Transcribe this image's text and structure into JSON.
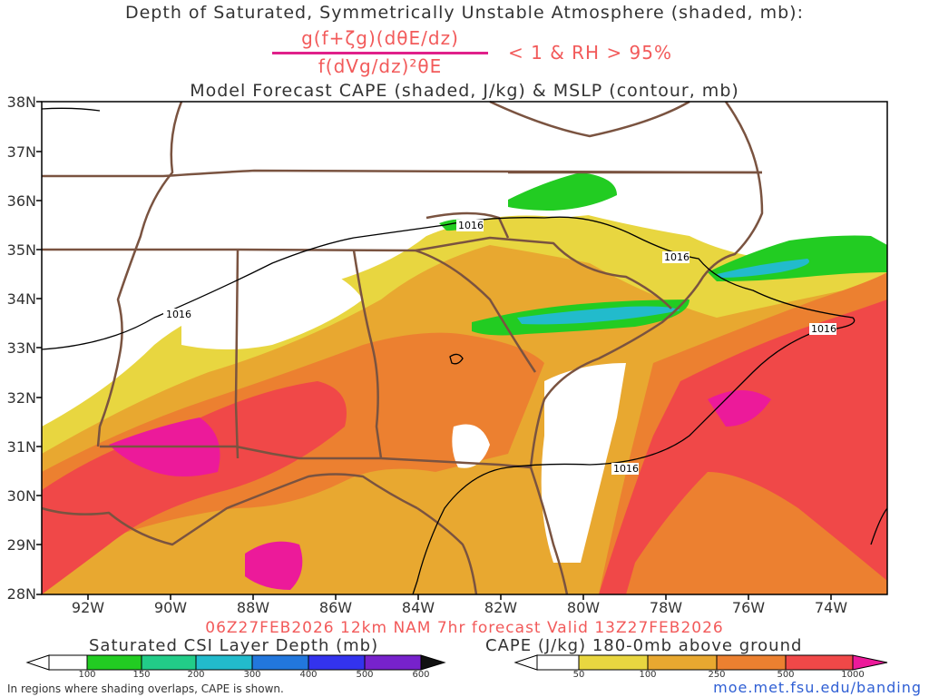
{
  "titles": {
    "line1": "Depth of Saturated, Symmetrically Unstable Atmosphere (shaded, mb):",
    "numerator": "g(f+ζg)(dθE/dz)",
    "denominator": "f(dVg/dz)²θE",
    "criterion": "< 1 & RH > 95%",
    "line3": "Model Forecast CAPE (shaded, J/kg) & MSLP (contour, mb)",
    "valid": "06Z27FEB2026 12km NAM 7hr forecast Valid 13Z27FEB2026"
  },
  "axes": {
    "lat_labels": [
      "38N",
      "37N",
      "36N",
      "35N",
      "34N",
      "33N",
      "32N",
      "31N",
      "30N",
      "29N",
      "28N"
    ],
    "lon_labels": [
      "92W",
      "90W",
      "88W",
      "86W",
      "84W",
      "82W",
      "80W",
      "78W",
      "76W",
      "74W"
    ]
  },
  "isobar_label": "1016",
  "colorbars": {
    "csi": {
      "title": "Saturated CSI Layer Depth (mb)",
      "labels": [
        "100",
        "150",
        "200",
        "300",
        "400",
        "500",
        "600"
      ],
      "colors": [
        "#ffffff",
        "#22cc22",
        "#22cc88",
        "#22bbcc",
        "#2277dd",
        "#3333ee",
        "#7722cc",
        "#111111"
      ]
    },
    "cape": {
      "title": "CAPE (J/kg) 180-0mb above ground",
      "labels": [
        "50",
        "100",
        "250",
        "500",
        "1000"
      ],
      "colors": [
        "#ffffff",
        "#e8d640",
        "#e8a830",
        "#ec8030",
        "#f04848",
        "#ec1a9a"
      ]
    }
  },
  "footer": {
    "note": "In regions where shading overlaps, CAPE is shown.",
    "url": "moe.met.fsu.edu/banding"
  },
  "colors": {
    "state_lines": "#7a5340",
    "coast": "#7a5340",
    "isobar": "#000000",
    "title_red": "#f25a5a"
  }
}
